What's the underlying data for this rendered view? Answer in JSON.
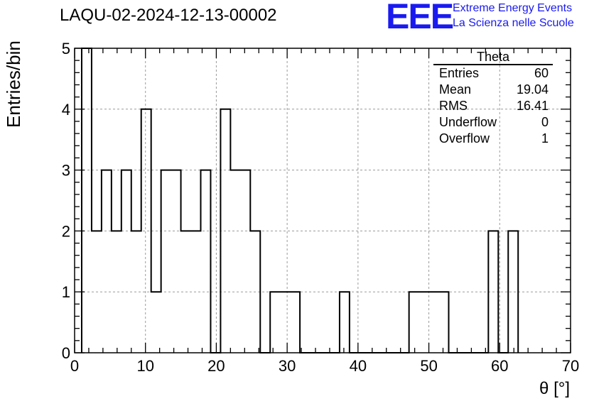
{
  "title": "LAQU-02-2024-12-13-00002",
  "logo": {
    "mark": "EEE",
    "line1": "Extreme Energy Events",
    "line2": "La Scienza nelle Scuole",
    "color": "#1a1af0"
  },
  "stats_box": {
    "title": "Theta",
    "rows": [
      {
        "label": "Entries",
        "value": "60"
      },
      {
        "label": "Mean",
        "value": "19.04"
      },
      {
        "label": "RMS",
        "value": "16.41"
      },
      {
        "label": "Underflow",
        "value": "0"
      },
      {
        "label": "Overflow",
        "value": "1"
      }
    ]
  },
  "chart_data": {
    "type": "histogram",
    "xlabel": "θ [°]",
    "ylabel": "Entries/bin",
    "xlim": [
      0,
      70
    ],
    "ylim": [
      0,
      5
    ],
    "bin_width": 1.4,
    "bin_start": 1.0,
    "values": [
      5,
      2,
      3,
      2,
      3,
      2,
      4,
      1,
      3,
      3,
      2,
      2,
      3,
      0,
      4,
      3,
      3,
      2,
      0,
      1,
      1,
      1,
      0,
      0,
      0,
      0,
      1,
      0,
      0,
      0,
      0,
      0,
      0,
      1,
      1,
      1,
      1,
      0,
      0,
      0,
      0,
      2,
      0,
      2
    ],
    "x_ticks": [
      0,
      10,
      20,
      30,
      40,
      50,
      60,
      70
    ],
    "y_ticks": [
      0,
      1,
      2,
      3,
      4,
      5
    ],
    "grid": true,
    "line_color": "#000000",
    "grid_color": "#9a9a9a"
  }
}
